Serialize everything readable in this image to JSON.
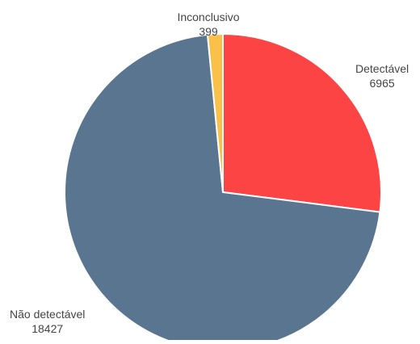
{
  "chart_data": {
    "type": "pie",
    "categories": [
      "Detectável",
      "Não detectável",
      "Inconclusivo"
    ],
    "values": [
      6965,
      18427,
      399
    ],
    "value_labels": [
      "6965",
      "18427",
      "399"
    ],
    "colors": [
      "#FC4444",
      "#5A758F",
      "#F9C04A"
    ],
    "start_angle_deg": 0,
    "direction": "clockwise"
  }
}
